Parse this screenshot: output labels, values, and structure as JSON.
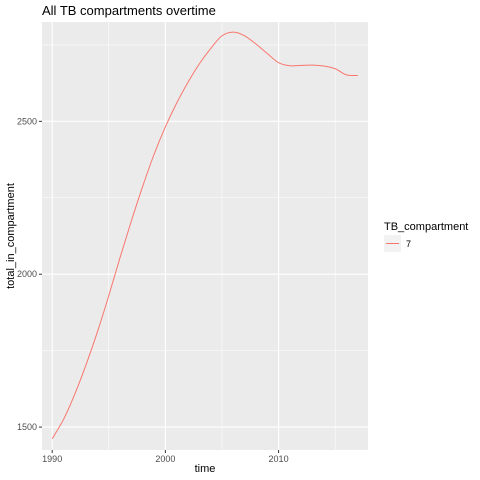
{
  "chart_data": {
    "type": "line",
    "title": "All TB compartments overtime",
    "xlabel": "time",
    "ylabel": "total_in_compartment",
    "xlim": [
      1989.1,
      2017.9
    ],
    "ylim": [
      1425,
      2825
    ],
    "x_ticks": [
      1990,
      2000,
      2010
    ],
    "y_ticks": [
      1500,
      2000,
      2500
    ],
    "x_tick_labels": [
      "1990",
      "2000",
      "2010"
    ],
    "y_tick_labels": [
      "1500",
      "2000",
      "2500"
    ],
    "minor_grid_x": [
      1995,
      2005,
      2015
    ],
    "minor_grid_y": [
      1750,
      2250,
      2750
    ],
    "grid": true,
    "legend": {
      "title": "TB_compartment",
      "placement": "right"
    },
    "series": [
      {
        "name": "7",
        "color": "#F8766D",
        "x": [
          1990,
          1991,
          1992,
          1993,
          1994,
          1995,
          1996,
          1997,
          1998,
          1999,
          2000,
          2001,
          2002,
          2003,
          2004,
          2005,
          2006,
          2007,
          2008,
          2009,
          2010,
          2011,
          2012,
          2013,
          2014,
          2015,
          2016,
          2017
        ],
        "y": [
          1462,
          1525,
          1608,
          1705,
          1812,
          1930,
          2055,
          2175,
          2288,
          2392,
          2482,
          2560,
          2628,
          2688,
          2738,
          2780,
          2792,
          2780,
          2753,
          2722,
          2692,
          2682,
          2683,
          2684,
          2681,
          2672,
          2652,
          2650
        ]
      }
    ]
  }
}
